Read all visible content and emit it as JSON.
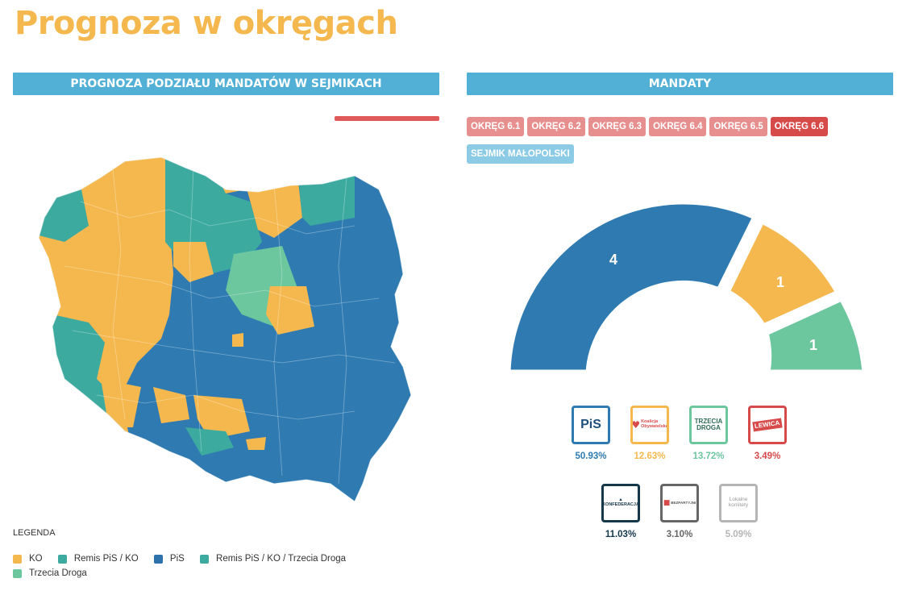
{
  "page": {
    "title": "Prognoza w okręgach",
    "left_header": "PROGNOZA PODZIAŁU MANDATÓW W SEJMIKACH",
    "right_header": "MANDATY"
  },
  "legend": {
    "title": "LEGENDA",
    "items": [
      {
        "label": "KO",
        "color": "#f5b84f"
      },
      {
        "label": "Remis PiS / KO",
        "color": "#3daaa0"
      },
      {
        "label": "PiS",
        "color": "#2d72aa"
      },
      {
        "label": "Remis PiS / KO / Trzecia Droga",
        "color": "#3daaa0"
      },
      {
        "label": "Trzecia Droga",
        "color": "#6cc69e"
      }
    ]
  },
  "tabs": [
    {
      "label": "OKRĘG 6.1",
      "state": "inactive"
    },
    {
      "label": "OKRĘG 6.2",
      "state": "inactive"
    },
    {
      "label": "OKRĘG 6.3",
      "state": "inactive"
    },
    {
      "label": "OKRĘG 6.4",
      "state": "inactive"
    },
    {
      "label": "OKRĘG 6.5",
      "state": "inactive"
    },
    {
      "label": "OKRĘG 6.6",
      "state": "active"
    },
    {
      "label": "SEJMIK MAŁOPOLSKI",
      "state": "sejmik"
    }
  ],
  "seats": [
    {
      "party": "PiS",
      "value": "4",
      "color": "#2f7bb1"
    },
    {
      "party": "KO",
      "value": "1",
      "color": "#f5b84f"
    },
    {
      "party": "Trzecia Droga",
      "value": "1",
      "color": "#6cc69e"
    }
  ],
  "parties": [
    {
      "name": "PiS",
      "logo_text": "PiS",
      "pct": "50.93%",
      "color": "#2f7bb1"
    },
    {
      "name": "Koalicja Obywatelska",
      "logo_text": "Koalicja Obywatelska",
      "pct": "12.63%",
      "color": "#f5b84f"
    },
    {
      "name": "Trzecia Droga",
      "logo_text": "TRZECIA DROGA",
      "pct": "13.72%",
      "color": "#6cc69e"
    },
    {
      "name": "Lewica",
      "logo_text": "LEWICA",
      "pct": "3.49%",
      "color": "#d74a4a"
    },
    {
      "name": "Konfederacja",
      "logo_text": "KONFEDERACJA",
      "pct": "11.03%",
      "color": "#14374a"
    },
    {
      "name": "Bezpartyjni Samorządowcy",
      "logo_text": "BEZPARTYJNI",
      "pct": "3.10%",
      "color": "#666666"
    },
    {
      "name": "Lokalne komitety",
      "logo_text": "Lokalne komitety",
      "pct": "5.09%",
      "color": "#b5b5b5"
    }
  ]
}
